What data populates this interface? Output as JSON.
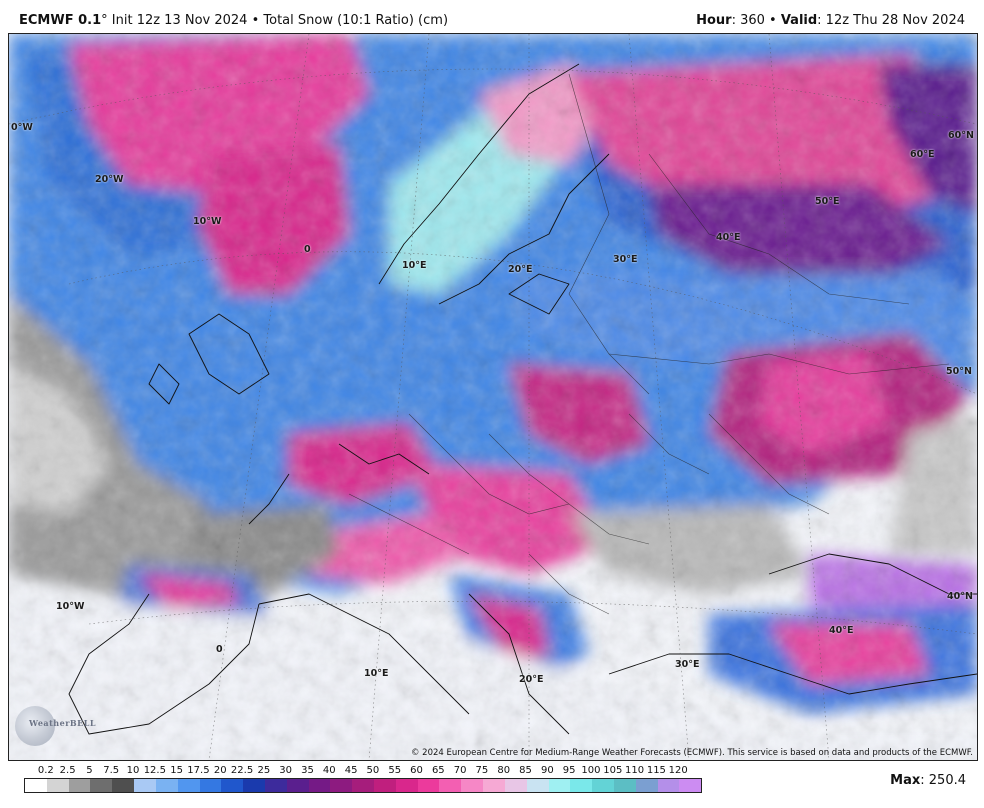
{
  "header": {
    "model": "ECMWF 0.1",
    "degree": "°",
    "init": " Init 12z 13 Nov 2024 • Total Snow (10:1 Ratio) (cm)",
    "hour_label": "Hour",
    "hour_value": ": 360 • ",
    "valid_label": "Valid",
    "valid_value": ": 12z Thu 28 Nov 2024"
  },
  "map_labels": {
    "lon_0w_top": "0°W",
    "lon_20w": "20°W",
    "lon_10w_top": "10°W",
    "lon_0_top": "0",
    "lon_10e_top": "10°E",
    "lon_20e_top": "20°E",
    "lon_30e_top": "30°E",
    "lon_40e_top": "40°E",
    "lon_50e": "50°E",
    "lon_60e": "60°E",
    "lat_60n": "60°N",
    "lat_50n": "50°N",
    "lat_40n": "40°N",
    "lon_10w_bot": "10°W",
    "lon_0_bot": "0",
    "lon_10e_bot": "10°E",
    "lon_20e_bot": "20°E",
    "lon_30e_bot": "30°E",
    "lon_40e_bot": "40°E"
  },
  "copyright": "© 2024 European Centre for Medium-Range Weather Forecasts (ECMWF). This service is based on data and products of the ECMWF.",
  "watermark": "WeatherBELL",
  "legend": {
    "ticks": [
      "0.2",
      "2.5",
      "5",
      "7.5",
      "10",
      "12.5",
      "15",
      "17.5",
      "20",
      "22.5",
      "25",
      "30",
      "35",
      "40",
      "45",
      "50",
      "55",
      "60",
      "65",
      "70",
      "75",
      "80",
      "85",
      "90",
      "95",
      "100",
      "105",
      "110",
      "115",
      "120"
    ],
    "colors": [
      "#ffffff",
      "#d4d4d4",
      "#9e9e9e",
      "#6e6e6e",
      "#4f4f4f",
      "#a9c9f4",
      "#7ab2f2",
      "#5196ef",
      "#3478e2",
      "#2057cc",
      "#1a3aad",
      "#3d2b9c",
      "#5a1f8e",
      "#751a86",
      "#8d1b80",
      "#a61d7c",
      "#c01f7e",
      "#d9278c",
      "#ec3a9c",
      "#f35fb2",
      "#f687c6",
      "#f6a9d4",
      "#e8c6e6",
      "#c9e3f2",
      "#9ff0f2",
      "#7ae8ea",
      "#63d3d6",
      "#5cbec4",
      "#7b9fd1",
      "#b48fe9",
      "#cc8cf2"
    ],
    "max_label": "Max",
    "max_value": ": 250.4"
  }
}
